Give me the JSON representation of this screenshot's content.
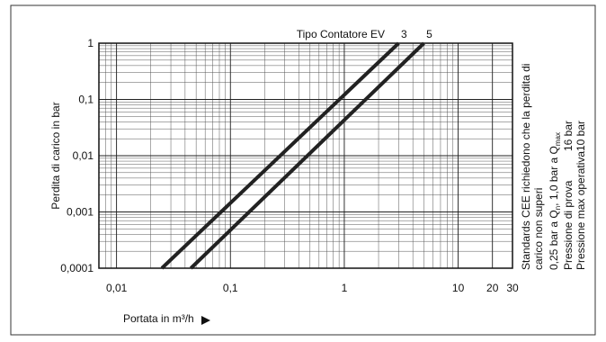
{
  "chart_data": {
    "type": "line",
    "title": "Tipo Contatore EV",
    "y_label": "Perdita di carico in bar",
    "x_label": "Portata in m³/h",
    "log_x": true,
    "log_y": true,
    "grid": true,
    "xlim": [
      0.007,
      30
    ],
    "ylim": [
      0.0001,
      1
    ],
    "xticks": [
      {
        "value": 0.01,
        "label": "0,01"
      },
      {
        "value": 0.1,
        "label": "0,1"
      },
      1,
      10,
      20,
      30
    ],
    "yticks": [
      {
        "value": 0.0001,
        "label": "0,0001"
      },
      {
        "value": 0.001,
        "label": "0,001"
      },
      {
        "value": 0.01,
        "label": "0,01"
      },
      {
        "value": 0.1,
        "label": "0,1"
      },
      1
    ],
    "series": [
      {
        "name": "3",
        "color": "#222222",
        "x": [
          0.025,
          3
        ],
        "values": [
          0.0001,
          1
        ]
      },
      {
        "name": "5",
        "color": "#222222",
        "x": [
          0.045,
          5
        ],
        "values": [
          0.0001,
          1
        ]
      }
    ],
    "side_notes": [
      [
        "Standards CEE richiedono che la perdita di"
      ],
      [
        "carico non superi"
      ],
      [
        "0,25 bar a Q",
        "n",
        ", 1,0 bar a Q",
        "max"
      ],
      [
        "Pressione di prova",
        "16 bar"
      ],
      [
        "Pressione max operativa",
        "10 bar"
      ]
    ]
  }
}
